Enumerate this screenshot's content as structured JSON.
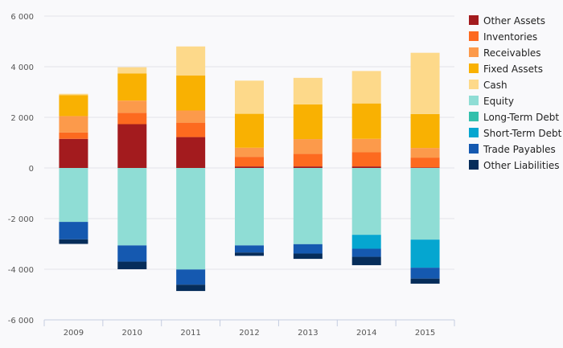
{
  "chart_data": {
    "type": "bar",
    "stacked": true,
    "categories": [
      "2009",
      "2010",
      "2011",
      "2012",
      "2013",
      "2014",
      "2015"
    ],
    "ylim": [
      -6000,
      6000
    ],
    "yticks": [
      {
        "value": 6000,
        "label": "6 000"
      },
      {
        "value": 4000,
        "label": "4 000"
      },
      {
        "value": 2000,
        "label": "2 000"
      },
      {
        "value": 0,
        "label": "0"
      },
      {
        "value": -2000,
        "label": "-2 000"
      },
      {
        "value": -4000,
        "label": "-4 000"
      },
      {
        "value": -6000,
        "label": "-6 000"
      }
    ],
    "series": [
      {
        "name": "Other Assets",
        "color": "#a31b1e",
        "values": [
          1150,
          1730,
          1220,
          60,
          60,
          60,
          20
        ]
      },
      {
        "name": "Inventories",
        "color": "#fd6a1f",
        "values": [
          250,
          450,
          570,
          380,
          500,
          560,
          390
        ]
      },
      {
        "name": "Receivables",
        "color": "#fc9a4b",
        "values": [
          650,
          480,
          480,
          360,
          580,
          530,
          380
        ]
      },
      {
        "name": "Fixed Assets",
        "color": "#f9b102",
        "values": [
          830,
          1070,
          1380,
          1340,
          1370,
          1400,
          1340
        ]
      },
      {
        "name": "Cash",
        "color": "#fdd98a",
        "values": [
          50,
          250,
          1150,
          1310,
          1050,
          1280,
          2420
        ]
      },
      {
        "name": "Equity",
        "color": "#8fddd5",
        "values": [
          -2130,
          -3060,
          -4010,
          -3060,
          -3010,
          -2640,
          -2830
        ]
      },
      {
        "name": "Long-Term Debt",
        "color": "#34c0ac",
        "values": [
          0,
          0,
          0,
          0,
          0,
          0,
          0
        ]
      },
      {
        "name": "Short-Term Debt",
        "color": "#05a6d0",
        "values": [
          0,
          0,
          0,
          0,
          0,
          -550,
          -1110
        ]
      },
      {
        "name": "Trade Payables",
        "color": "#1559b0",
        "values": [
          -690,
          -640,
          -600,
          -280,
          -370,
          -320,
          -430
        ]
      },
      {
        "name": "Other Liabilities",
        "color": "#062d5a",
        "values": [
          -180,
          -300,
          -250,
          -130,
          -210,
          -330,
          -200
        ]
      }
    ]
  }
}
